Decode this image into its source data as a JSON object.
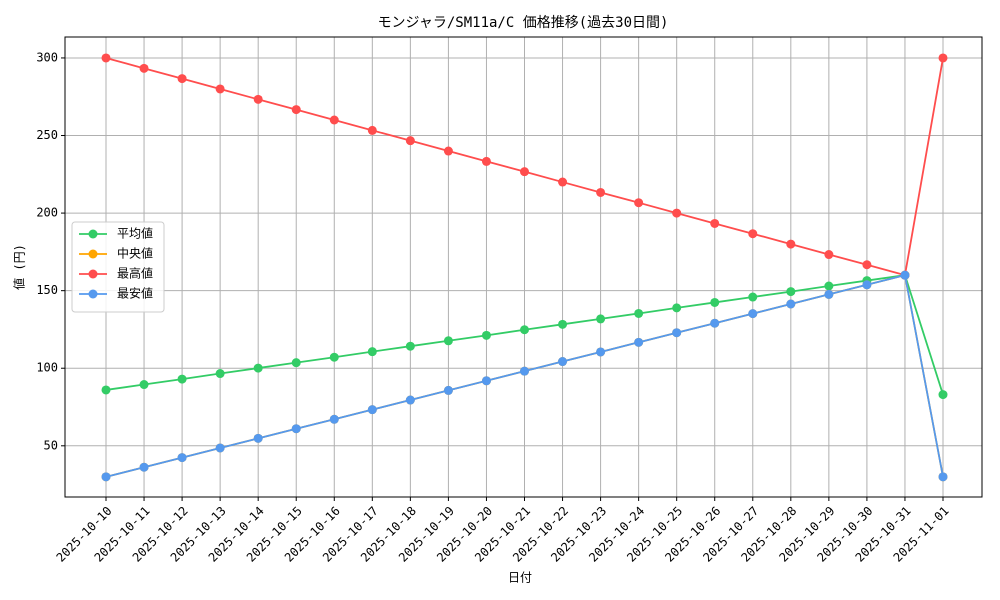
{
  "chart_data": {
    "type": "line",
    "title": "モンジャラ/SM11a/C 価格推移(過去30日間)",
    "x_label": "日付",
    "y_label": "値 (円)",
    "categories": [
      "2025-10-10",
      "2025-10-11",
      "2025-10-12",
      "2025-10-13",
      "2025-10-14",
      "2025-10-15",
      "2025-10-16",
      "2025-10-17",
      "2025-10-18",
      "2025-10-19",
      "2025-10-20",
      "2025-10-21",
      "2025-10-22",
      "2025-10-23",
      "2025-10-24",
      "2025-10-25",
      "2025-10-26",
      "2025-10-27",
      "2025-10-28",
      "2025-10-29",
      "2025-10-30",
      "2025-10-31",
      "2025-11-01"
    ],
    "series": [
      {
        "name": "平均値",
        "color": "#33cc66",
        "values": [
          86,
          89.5,
          93,
          96.6,
          100.1,
          103.6,
          107.1,
          110.7,
          114.2,
          117.7,
          121.2,
          124.8,
          128.3,
          131.8,
          135.3,
          138.9,
          142.4,
          145.9,
          149.4,
          153,
          156.5,
          160,
          83
        ]
      },
      {
        "name": "中央値",
        "color": "#ffa500",
        "values": [
          30,
          36.2,
          42.4,
          48.6,
          54.8,
          61,
          67.1,
          73.3,
          79.5,
          85.7,
          91.9,
          98.1,
          104.3,
          110.5,
          116.7,
          122.9,
          129,
          135.2,
          141.4,
          147.6,
          153.8,
          160,
          30
        ]
      },
      {
        "name": "最高値",
        "color": "#ff4d4d",
        "values": [
          300,
          293.3,
          286.7,
          280,
          273.3,
          266.7,
          260,
          253.3,
          246.7,
          240,
          233.3,
          226.7,
          220,
          213.3,
          206.7,
          200,
          193.3,
          186.7,
          180,
          173.3,
          166.7,
          160,
          300
        ]
      },
      {
        "name": "最安値",
        "color": "#5599ee",
        "values": [
          30,
          36.2,
          42.4,
          48.6,
          54.8,
          61,
          67.1,
          73.3,
          79.5,
          85.7,
          91.9,
          98.1,
          104.3,
          110.5,
          116.7,
          122.9,
          129,
          135.2,
          141.4,
          147.6,
          153.8,
          160,
          30
        ]
      }
    ],
    "ylim": [
      17,
      313.5
    ],
    "yticks": [
      50,
      100,
      150,
      200,
      250,
      300
    ],
    "grid": true,
    "legend_loc": "center left"
  }
}
